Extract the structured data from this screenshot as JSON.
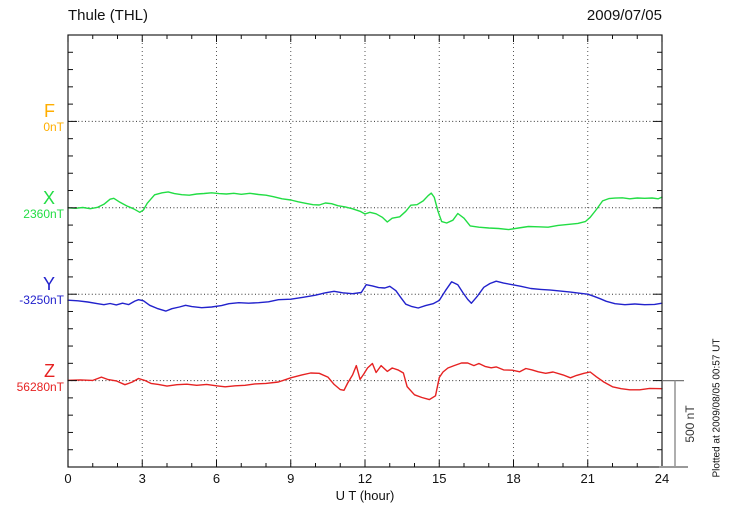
{
  "header": {
    "title": "Thule (THL)",
    "date": "2009/07/05"
  },
  "chart_data": {
    "type": "line",
    "title": "Thule (THL)",
    "date": "2009/07/05",
    "xlabel": "U T (hour)",
    "x_range": [
      0,
      24
    ],
    "x_ticks": [
      "0",
      "3",
      "6",
      "9",
      "12",
      "15",
      "18",
      "21",
      "24"
    ],
    "x_minor_tick_hours": 1,
    "grid": "dotted vertical lines every 3 hours, dotted horizontal line at each channel baseline",
    "y_scale": {
      "label": "500 nT",
      "nT_per_division": 500,
      "nT_per_minor_tick": 100,
      "baseline_spacing_nT": 500
    },
    "plotted_note": "Plotted at 2009/08/05 00:57 UT",
    "series": [
      {
        "id": "F",
        "label": "F",
        "baseline_label": "0nT",
        "baseline_nT": 0,
        "color": "#FFAE00",
        "has_data": false,
        "points": []
      },
      {
        "id": "X",
        "label": "X",
        "baseline_label": "2360nT",
        "baseline_nT": 2360,
        "color": "#22DD44",
        "has_data": true,
        "points": [
          [
            0,
            0
          ],
          [
            0.3,
            -3
          ],
          [
            0.6,
            2
          ],
          [
            0.9,
            -5
          ],
          [
            1.2,
            3
          ],
          [
            1.45,
            20
          ],
          [
            1.7,
            50
          ],
          [
            1.85,
            55
          ],
          [
            2.1,
            32
          ],
          [
            2.4,
            9
          ],
          [
            2.65,
            -6
          ],
          [
            2.9,
            -26
          ],
          [
            3.05,
            -12
          ],
          [
            3.2,
            26
          ],
          [
            3.5,
            75
          ],
          [
            3.8,
            87
          ],
          [
            4.05,
            92
          ],
          [
            4.3,
            82
          ],
          [
            4.6,
            76
          ],
          [
            4.9,
            73
          ],
          [
            5.2,
            80
          ],
          [
            5.5,
            83
          ],
          [
            5.8,
            87
          ],
          [
            6.1,
            82
          ],
          [
            6.4,
            80
          ],
          [
            6.7,
            84
          ],
          [
            7.0,
            78
          ],
          [
            7.35,
            84
          ],
          [
            7.7,
            77
          ],
          [
            8.0,
            73
          ],
          [
            8.3,
            64
          ],
          [
            8.65,
            52
          ],
          [
            9.0,
            45
          ],
          [
            9.3,
            35
          ],
          [
            9.6,
            26
          ],
          [
            9.9,
            18
          ],
          [
            10.15,
            16
          ],
          [
            10.4,
            28
          ],
          [
            10.65,
            24
          ],
          [
            10.9,
            12
          ],
          [
            11.2,
            5
          ],
          [
            11.5,
            -6
          ],
          [
            11.8,
            -20
          ],
          [
            12.0,
            -36
          ],
          [
            12.2,
            -26
          ],
          [
            12.45,
            -35
          ],
          [
            12.7,
            -55
          ],
          [
            12.9,
            -82
          ],
          [
            13.1,
            -60
          ],
          [
            13.4,
            -52
          ],
          [
            13.65,
            -20
          ],
          [
            13.85,
            15
          ],
          [
            14.1,
            18
          ],
          [
            14.35,
            40
          ],
          [
            14.55,
            70
          ],
          [
            14.68,
            85
          ],
          [
            14.8,
            60
          ],
          [
            14.95,
            -20
          ],
          [
            15.1,
            -80
          ],
          [
            15.3,
            -88
          ],
          [
            15.55,
            -72
          ],
          [
            15.75,
            -33
          ],
          [
            16.0,
            -60
          ],
          [
            16.25,
            -105
          ],
          [
            16.6,
            -112
          ],
          [
            17.0,
            -117
          ],
          [
            17.4,
            -120
          ],
          [
            17.8,
            -126
          ],
          [
            18.2,
            -117
          ],
          [
            18.6,
            -108
          ],
          [
            19.0,
            -110
          ],
          [
            19.4,
            -112
          ],
          [
            19.8,
            -102
          ],
          [
            20.2,
            -96
          ],
          [
            20.6,
            -90
          ],
          [
            20.9,
            -80
          ],
          [
            21.1,
            -55
          ],
          [
            21.35,
            -10
          ],
          [
            21.6,
            40
          ],
          [
            21.85,
            53
          ],
          [
            22.1,
            56
          ],
          [
            22.4,
            58
          ],
          [
            22.7,
            52
          ],
          [
            23.0,
            57
          ],
          [
            23.3,
            55
          ],
          [
            23.6,
            57
          ],
          [
            23.85,
            52
          ],
          [
            24,
            62
          ]
        ]
      },
      {
        "id": "Y",
        "label": "Y",
        "baseline_label": "-3250nT",
        "baseline_nT": -3250,
        "color": "#2222CC",
        "has_data": true,
        "points": [
          [
            0,
            -35
          ],
          [
            0.4,
            -38
          ],
          [
            0.8,
            -45
          ],
          [
            1.2,
            -55
          ],
          [
            1.45,
            -61
          ],
          [
            1.7,
            -54
          ],
          [
            1.95,
            -62
          ],
          [
            2.2,
            -52
          ],
          [
            2.45,
            -60
          ],
          [
            2.7,
            -40
          ],
          [
            2.85,
            -32
          ],
          [
            3.05,
            -38
          ],
          [
            3.3,
            -64
          ],
          [
            3.6,
            -82
          ],
          [
            3.95,
            -98
          ],
          [
            4.2,
            -84
          ],
          [
            4.5,
            -74
          ],
          [
            4.75,
            -64
          ],
          [
            5.0,
            -72
          ],
          [
            5.4,
            -78
          ],
          [
            5.8,
            -74
          ],
          [
            6.2,
            -66
          ],
          [
            6.5,
            -55
          ],
          [
            6.9,
            -49
          ],
          [
            7.3,
            -52
          ],
          [
            7.7,
            -49
          ],
          [
            8.1,
            -44
          ],
          [
            8.5,
            -32
          ],
          [
            9.0,
            -29
          ],
          [
            9.5,
            -18
          ],
          [
            10.0,
            -6
          ],
          [
            10.4,
            8
          ],
          [
            10.75,
            17
          ],
          [
            11.1,
            8
          ],
          [
            11.5,
            3
          ],
          [
            11.85,
            10
          ],
          [
            12.05,
            55
          ],
          [
            12.3,
            48
          ],
          [
            12.55,
            38
          ],
          [
            12.8,
            36
          ],
          [
            13.0,
            46
          ],
          [
            13.25,
            20
          ],
          [
            13.45,
            -20
          ],
          [
            13.65,
            -58
          ],
          [
            13.9,
            -72
          ],
          [
            14.15,
            -80
          ],
          [
            14.45,
            -66
          ],
          [
            14.75,
            -55
          ],
          [
            15.0,
            -36
          ],
          [
            15.25,
            20
          ],
          [
            15.5,
            72
          ],
          [
            15.75,
            55
          ],
          [
            15.95,
            10
          ],
          [
            16.15,
            -30
          ],
          [
            16.3,
            -52
          ],
          [
            16.55,
            -10
          ],
          [
            16.8,
            40
          ],
          [
            17.05,
            62
          ],
          [
            17.3,
            75
          ],
          [
            17.6,
            64
          ],
          [
            17.95,
            55
          ],
          [
            18.3,
            46
          ],
          [
            18.7,
            33
          ],
          [
            19.1,
            28
          ],
          [
            19.5,
            24
          ],
          [
            19.9,
            18
          ],
          [
            20.3,
            12
          ],
          [
            20.7,
            5
          ],
          [
            21.0,
            0
          ],
          [
            21.25,
            -12
          ],
          [
            21.5,
            -26
          ],
          [
            21.75,
            -41
          ],
          [
            22.1,
            -55
          ],
          [
            22.5,
            -61
          ],
          [
            22.9,
            -57
          ],
          [
            23.3,
            -61
          ],
          [
            23.7,
            -59
          ],
          [
            24,
            -52
          ]
        ]
      },
      {
        "id": "Z",
        "label": "Z",
        "baseline_label": "56280nT",
        "baseline_nT": 56280,
        "color": "#E62222",
        "has_data": true,
        "points": [
          [
            0,
            2
          ],
          [
            0.5,
            4
          ],
          [
            1.0,
            1
          ],
          [
            1.35,
            20
          ],
          [
            1.6,
            7
          ],
          [
            1.95,
            -2
          ],
          [
            2.3,
            -24
          ],
          [
            2.6,
            -8
          ],
          [
            2.85,
            12
          ],
          [
            3.1,
            1
          ],
          [
            3.35,
            -16
          ],
          [
            3.65,
            -22
          ],
          [
            4.0,
            -32
          ],
          [
            4.4,
            -24
          ],
          [
            4.8,
            -21
          ],
          [
            5.2,
            -27
          ],
          [
            5.6,
            -22
          ],
          [
            6.0,
            -30
          ],
          [
            6.35,
            -36
          ],
          [
            6.75,
            -30
          ],
          [
            7.15,
            -27
          ],
          [
            7.55,
            -19
          ],
          [
            8.0,
            -16
          ],
          [
            8.5,
            -8
          ],
          [
            9.0,
            16
          ],
          [
            9.45,
            33
          ],
          [
            9.8,
            44
          ],
          [
            10.15,
            42
          ],
          [
            10.5,
            20
          ],
          [
            10.75,
            -22
          ],
          [
            11.0,
            -52
          ],
          [
            11.15,
            -56
          ],
          [
            11.3,
            -14
          ],
          [
            11.5,
            33
          ],
          [
            11.65,
            87
          ],
          [
            11.8,
            7
          ],
          [
            11.95,
            38
          ],
          [
            12.1,
            73
          ],
          [
            12.3,
            99
          ],
          [
            12.45,
            47
          ],
          [
            12.65,
            87
          ],
          [
            12.9,
            53
          ],
          [
            13.1,
            73
          ],
          [
            13.35,
            61
          ],
          [
            13.55,
            44
          ],
          [
            13.7,
            -35
          ],
          [
            14.0,
            -82
          ],
          [
            14.3,
            -98
          ],
          [
            14.6,
            -110
          ],
          [
            14.85,
            -88
          ],
          [
            15.0,
            18
          ],
          [
            15.15,
            50
          ],
          [
            15.35,
            73
          ],
          [
            15.6,
            87
          ],
          [
            15.9,
            102
          ],
          [
            16.15,
            102
          ],
          [
            16.4,
            87
          ],
          [
            16.6,
            99
          ],
          [
            16.85,
            82
          ],
          [
            17.1,
            74
          ],
          [
            17.3,
            79
          ],
          [
            17.6,
            62
          ],
          [
            17.95,
            60
          ],
          [
            18.25,
            51
          ],
          [
            18.5,
            70
          ],
          [
            18.75,
            62
          ],
          [
            19.0,
            51
          ],
          [
            19.3,
            42
          ],
          [
            19.6,
            50
          ],
          [
            20.0,
            33
          ],
          [
            20.3,
            16
          ],
          [
            20.55,
            30
          ],
          [
            20.85,
            42
          ],
          [
            21.1,
            50
          ],
          [
            21.35,
            22
          ],
          [
            21.65,
            -8
          ],
          [
            22.0,
            -36
          ],
          [
            22.35,
            -47
          ],
          [
            22.7,
            -53
          ],
          [
            23.1,
            -53
          ],
          [
            23.5,
            -45
          ],
          [
            24,
            -47
          ]
        ]
      }
    ]
  }
}
